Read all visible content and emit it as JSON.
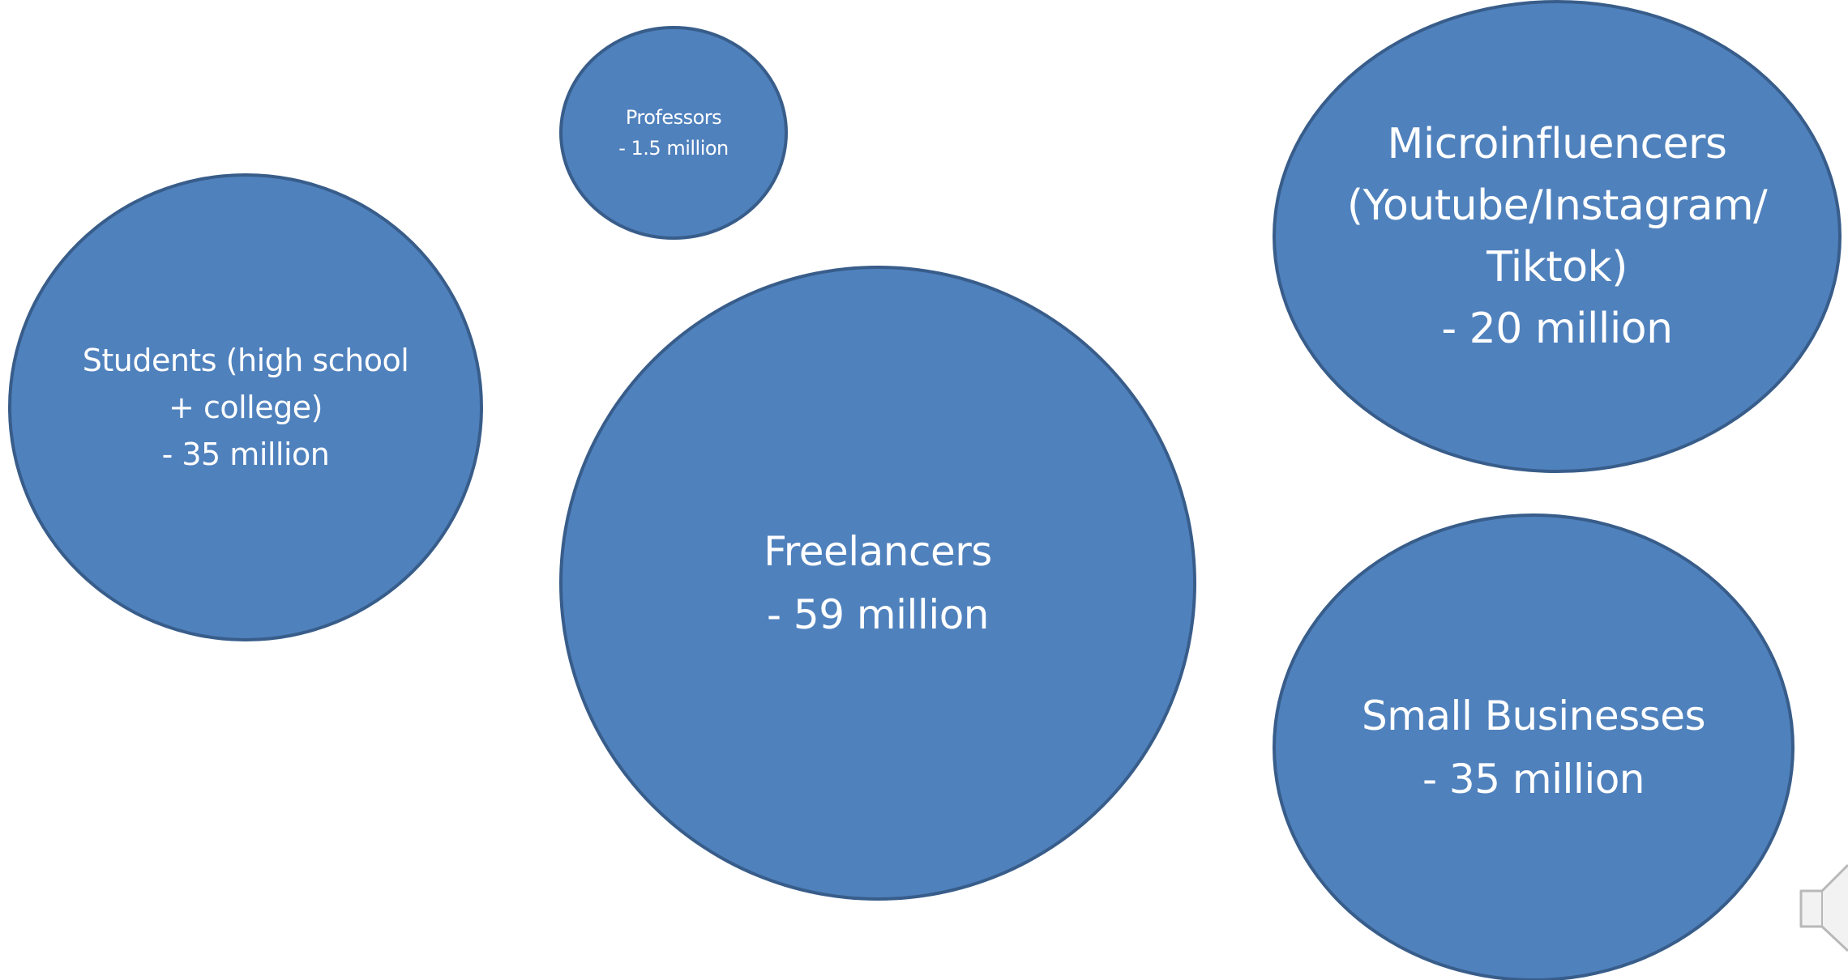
{
  "bubbles": {
    "professors": {
      "lines": [
        "Professors",
        "- 1.5 million"
      ],
      "value_millions": 1.5
    },
    "students": {
      "lines": [
        "Students (high school",
        "+ college)",
        "- 35 million"
      ],
      "value_millions": 35
    },
    "freelancers": {
      "lines": [
        "Freelancers",
        "- 59 million"
      ],
      "value_millions": 59
    },
    "microinfluencers": {
      "lines": [
        "Microinfluencers",
        "(Youtube/Instagram/",
        "Tiktok)",
        "- 20 million"
      ],
      "value_millions": 20
    },
    "small_businesses": {
      "lines": [
        "Small Businesses",
        "- 35 million"
      ],
      "value_millions": 35
    }
  },
  "colors": {
    "bubble_fill": "#4f81bd",
    "bubble_border": "#385d8a",
    "text": "#ffffff",
    "background": "#ffffff"
  },
  "icons": {
    "audio": "speaker-icon"
  }
}
